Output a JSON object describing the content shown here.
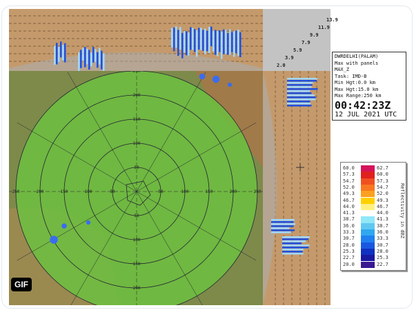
{
  "badge": "GIF",
  "info": {
    "station": "DWRDELHI(PALAM)",
    "product": "Max with panels",
    "type": "MAX_Z",
    "task": "Task: IMD-B",
    "min_hgt": "Min Hgt:0.0 km",
    "max_hgt": "Max Hgt:15.0 km",
    "max_range": "Max Range:250 km",
    "time": "00:42:23Z",
    "date": "12 JUL 2021 UTC"
  },
  "height_labels": [
    "2.0",
    "3.9",
    "5.9",
    "7.9",
    "9.9",
    "11.9",
    "13.9"
  ],
  "legend": {
    "unit": "Reflectivity in dBZ",
    "rows": [
      {
        "lo": "60.0",
        "hi": "62.7",
        "color": "#d4145a"
      },
      {
        "lo": "57.3",
        "hi": "60.0",
        "color": "#e0201e"
      },
      {
        "lo": "54.7",
        "hi": "57.3",
        "color": "#f05020"
      },
      {
        "lo": "52.0",
        "hi": "54.7",
        "color": "#f87820"
      },
      {
        "lo": "49.3",
        "hi": "52.0",
        "color": "#fca020"
      },
      {
        "lo": "46.7",
        "hi": "49.3",
        "color": "#ffd000"
      },
      {
        "lo": "44.0",
        "hi": "46.7",
        "color": "#fff080"
      },
      {
        "lo": "41.3",
        "hi": "44.0",
        "color": "#ffffff"
      },
      {
        "lo": "38.7",
        "hi": "41.3",
        "color": "#90e8f8"
      },
      {
        "lo": "36.0",
        "hi": "38.7",
        "color": "#60c8f0"
      },
      {
        "lo": "33.3",
        "hi": "36.0",
        "color": "#30a8f0"
      },
      {
        "lo": "30.7",
        "hi": "33.3",
        "color": "#2080f0"
      },
      {
        "lo": "28.0",
        "hi": "30.7",
        "color": "#1858e0"
      },
      {
        "lo": "25.3",
        "hi": "28.0",
        "color": "#1030c0"
      },
      {
        "lo": "22.7",
        "hi": "25.3",
        "color": "#1818a0"
      },
      {
        "lo": "20.0",
        "hi": "22.7",
        "color": "#3a1890"
      }
    ]
  },
  "range_labels": [
    "50",
    "100",
    "150",
    "200",
    "250"
  ]
}
